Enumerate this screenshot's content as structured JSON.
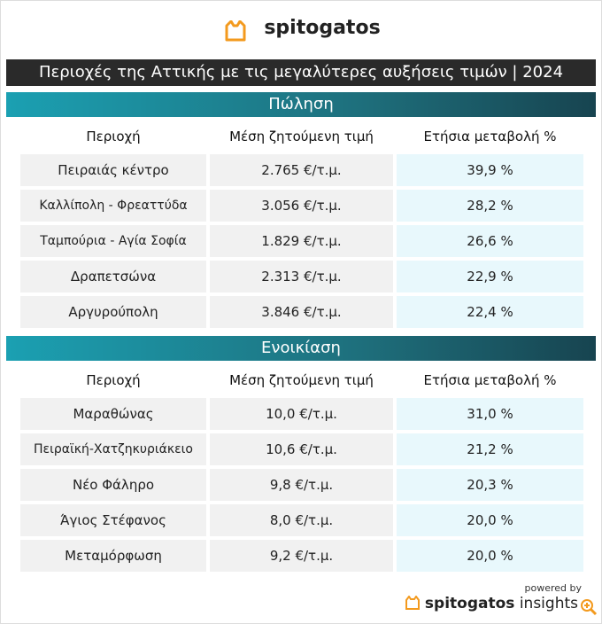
{
  "header": {
    "brand": "spitogatos",
    "title": "Περιοχές της Αττικής με τις μεγαλύτερες αυξήσεις τιμών | 2024"
  },
  "sections": [
    {
      "title": "Πώληση",
      "columns": [
        "Περιοχή",
        "Μέση ζητούμενη τιμή",
        "Ετήσια μεταβολή %"
      ],
      "rows": [
        [
          "Πειραιάς κέντρο",
          "2.765 €/τ.μ.",
          "39,9 %"
        ],
        [
          "Καλλίπολη - Φρεαττύδα",
          "3.056 €/τ.μ.",
          "28,2 %"
        ],
        [
          "Ταμπούρια - Αγία Σοφία",
          "1.829 €/τ.μ.",
          "26,6 %"
        ],
        [
          "Δραπετσώνα",
          "2.313 €/τ.μ.",
          "22,9 %"
        ],
        [
          "Αργυρούπολη",
          "3.846 €/τ.μ.",
          "22,4 %"
        ]
      ]
    },
    {
      "title": "Ενοικίαση",
      "columns": [
        "Περιοχή",
        "Μέση ζητούμενη τιμή",
        "Ετήσια μεταβολή %"
      ],
      "rows": [
        [
          "Μαραθώνας",
          "10,0 €/τ.μ.",
          "31,0 %"
        ],
        [
          "Πειραϊκή-Χατζηκυριάκειο",
          "10,6 €/τ.μ.",
          "21,2 %"
        ],
        [
          "Νέο Φάληρο",
          "9,8 €/τ.μ.",
          "20,3 %"
        ],
        [
          "Άγιος Στέφανος",
          "8,0 €/τ.μ.",
          "20,0 %"
        ],
        [
          "Μεταμόρφωση",
          "9,2 €/τ.μ.",
          "20,0 %"
        ]
      ]
    }
  ],
  "footer": {
    "powered_by": "powered by",
    "brand": "spitogatos",
    "product": "insights"
  }
}
